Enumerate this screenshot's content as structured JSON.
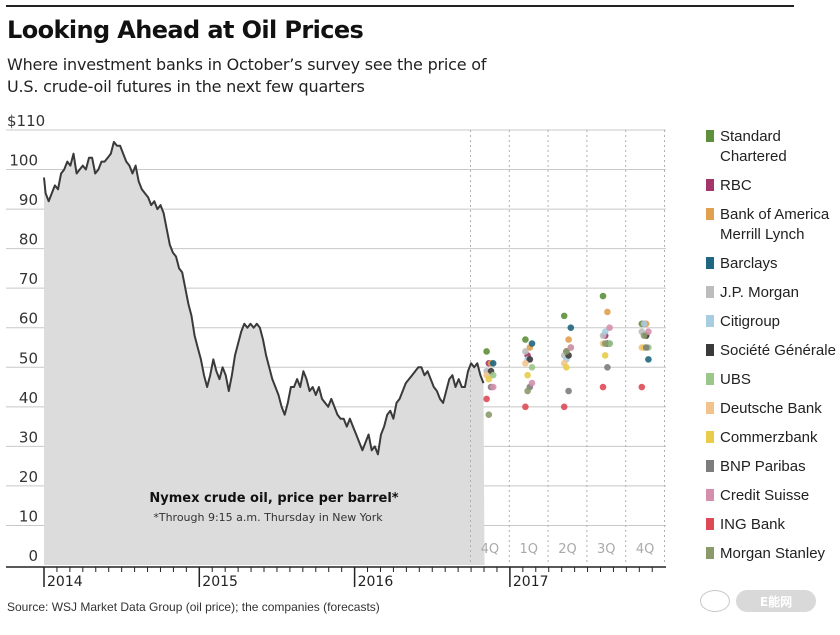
{
  "header": {
    "title": "Looking Ahead at Oil Prices",
    "subtitle": "Where investment banks in October’s survey see the price of U.S. crude-oil futures in the next few quarters"
  },
  "footer": {
    "source": "Source: WSJ Market Data Group (oil price); the companies (forecasts)",
    "watermark": "E能网"
  },
  "chart_data": {
    "type": "line",
    "title": "Nymex crude oil, price per barrel*",
    "annotation": "*Through 9:15 a.m. Thursday in New York",
    "ylabel": "",
    "ylim": [
      0,
      110
    ],
    "y_ticks": [
      {
        "value": 110,
        "label": "$110"
      },
      {
        "value": 100,
        "label": "100"
      },
      {
        "value": 90,
        "label": "90"
      },
      {
        "value": 80,
        "label": "80"
      },
      {
        "value": 70,
        "label": "70"
      },
      {
        "value": 60,
        "label": "60"
      },
      {
        "value": 50,
        "label": "50"
      },
      {
        "value": 40,
        "label": "40"
      },
      {
        "value": 30,
        "label": "30"
      },
      {
        "value": 20,
        "label": "20"
      },
      {
        "value": 10,
        "label": "10"
      },
      {
        "value": 0,
        "label": "0"
      }
    ],
    "x_year_labels": [
      "2014",
      "2015",
      "2016",
      "2017"
    ],
    "xlim_years": [
      2014.0,
      2018.0
    ],
    "grid": true,
    "price_series": {
      "name": "Nymex crude oil",
      "points": [
        [
          2014.0,
          98
        ],
        [
          2014.01,
          94
        ],
        [
          2014.03,
          92
        ],
        [
          2014.05,
          94
        ],
        [
          2014.07,
          96
        ],
        [
          2014.09,
          95
        ],
        [
          2014.11,
          99
        ],
        [
          2014.13,
          100
        ],
        [
          2014.15,
          102
        ],
        [
          2014.17,
          101
        ],
        [
          2014.19,
          104
        ],
        [
          2014.21,
          99
        ],
        [
          2014.23,
          100
        ],
        [
          2014.25,
          101
        ],
        [
          2014.27,
          100
        ],
        [
          2014.29,
          103
        ],
        [
          2014.31,
          103
        ],
        [
          2014.33,
          99
        ],
        [
          2014.35,
          100
        ],
        [
          2014.37,
          102
        ],
        [
          2014.39,
          102
        ],
        [
          2014.41,
          103
        ],
        [
          2014.43,
          104
        ],
        [
          2014.45,
          107
        ],
        [
          2014.47,
          106
        ],
        [
          2014.49,
          106
        ],
        [
          2014.51,
          104
        ],
        [
          2014.53,
          102
        ],
        [
          2014.55,
          101
        ],
        [
          2014.57,
          99
        ],
        [
          2014.59,
          101
        ],
        [
          2014.61,
          97
        ],
        [
          2014.63,
          95
        ],
        [
          2014.65,
          94
        ],
        [
          2014.67,
          93
        ],
        [
          2014.69,
          91
        ],
        [
          2014.71,
          92
        ],
        [
          2014.73,
          90
        ],
        [
          2014.75,
          91
        ],
        [
          2014.77,
          89
        ],
        [
          2014.79,
          85
        ],
        [
          2014.81,
          81
        ],
        [
          2014.83,
          79
        ],
        [
          2014.85,
          78
        ],
        [
          2014.87,
          75
        ],
        [
          2014.89,
          74
        ],
        [
          2014.91,
          70
        ],
        [
          2014.93,
          66
        ],
        [
          2014.95,
          63
        ],
        [
          2014.97,
          58
        ],
        [
          2014.99,
          55
        ],
        [
          2015.01,
          52
        ],
        [
          2015.03,
          48
        ],
        [
          2015.05,
          45
        ],
        [
          2015.07,
          48
        ],
        [
          2015.09,
          52
        ],
        [
          2015.11,
          49
        ],
        [
          2015.13,
          47
        ],
        [
          2015.15,
          50
        ],
        [
          2015.17,
          48
        ],
        [
          2015.19,
          44
        ],
        [
          2015.21,
          48
        ],
        [
          2015.23,
          53
        ],
        [
          2015.25,
          56
        ],
        [
          2015.27,
          59
        ],
        [
          2015.29,
          61
        ],
        [
          2015.31,
          60
        ],
        [
          2015.33,
          61
        ],
        [
          2015.35,
          60
        ],
        [
          2015.37,
          61
        ],
        [
          2015.39,
          60
        ],
        [
          2015.41,
          57
        ],
        [
          2015.43,
          53
        ],
        [
          2015.45,
          50
        ],
        [
          2015.47,
          47
        ],
        [
          2015.49,
          45
        ],
        [
          2015.51,
          43
        ],
        [
          2015.53,
          40
        ],
        [
          2015.55,
          38
        ],
        [
          2015.57,
          41
        ],
        [
          2015.59,
          45
        ],
        [
          2015.61,
          45
        ],
        [
          2015.63,
          47
        ],
        [
          2015.65,
          45
        ],
        [
          2015.67,
          49
        ],
        [
          2015.69,
          47
        ],
        [
          2015.71,
          44
        ],
        [
          2015.73,
          45
        ],
        [
          2015.75,
          43
        ],
        [
          2015.77,
          45
        ],
        [
          2015.79,
          42
        ],
        [
          2015.81,
          41
        ],
        [
          2015.83,
          40
        ],
        [
          2015.85,
          42
        ],
        [
          2015.87,
          40
        ],
        [
          2015.89,
          38
        ],
        [
          2015.91,
          37
        ],
        [
          2015.93,
          37
        ],
        [
          2015.95,
          35
        ],
        [
          2015.97,
          37
        ],
        [
          2015.99,
          35
        ],
        [
          2016.01,
          33
        ],
        [
          2016.03,
          31
        ],
        [
          2016.05,
          29
        ],
        [
          2016.07,
          31
        ],
        [
          2016.09,
          33
        ],
        [
          2016.11,
          29
        ],
        [
          2016.13,
          30
        ],
        [
          2016.15,
          28
        ],
        [
          2016.17,
          33
        ],
        [
          2016.19,
          35
        ],
        [
          2016.21,
          38
        ],
        [
          2016.23,
          39
        ],
        [
          2016.25,
          37
        ],
        [
          2016.27,
          41
        ],
        [
          2016.29,
          42
        ],
        [
          2016.31,
          44
        ],
        [
          2016.33,
          46
        ],
        [
          2016.35,
          47
        ],
        [
          2016.37,
          48
        ],
        [
          2016.39,
          49
        ],
        [
          2016.41,
          50
        ],
        [
          2016.43,
          50
        ],
        [
          2016.45,
          48
        ],
        [
          2016.47,
          49
        ],
        [
          2016.49,
          47
        ],
        [
          2016.51,
          45
        ],
        [
          2016.53,
          44
        ],
        [
          2016.55,
          42
        ],
        [
          2016.57,
          41
        ],
        [
          2016.59,
          44
        ],
        [
          2016.61,
          47
        ],
        [
          2016.63,
          48
        ],
        [
          2016.65,
          45
        ],
        [
          2016.67,
          47
        ],
        [
          2016.69,
          45
        ],
        [
          2016.71,
          45
        ],
        [
          2016.73,
          49
        ],
        [
          2016.75,
          51
        ],
        [
          2016.77,
          50
        ],
        [
          2016.79,
          51
        ],
        [
          2016.81,
          48
        ],
        [
          2016.83,
          46
        ]
      ]
    },
    "forecast_quarters": [
      "4Q",
      "1Q",
      "2Q",
      "3Q",
      "4Q"
    ],
    "forecast_quarter_years": [
      2016,
      2017,
      2017,
      2017,
      2017
    ],
    "series": [
      {
        "name": "Standard Chartered",
        "color": "#5e8f3a",
        "values": [
          54,
          57,
          63,
          68,
          61
        ]
      },
      {
        "name": "RBC",
        "color": "#a3356a",
        "values": [
          51,
          53,
          54,
          58,
          61
        ]
      },
      {
        "name": "Bank of America Merrill Lynch",
        "color": "#e0a050",
        "values": [
          51,
          55,
          57,
          64,
          61
        ]
      },
      {
        "name": "Barclays",
        "color": "#1f6680",
        "values": [
          51,
          56,
          60,
          56,
          52
        ]
      },
      {
        "name": "J.P. Morgan",
        "color": "#bdbdbd",
        "values": [
          49,
          54,
          53,
          58,
          59
        ]
      },
      {
        "name": "Citigroup",
        "color": "#a8cde0",
        "values": [
          48,
          52,
          52,
          59,
          61
        ]
      },
      {
        "name": "Société Générale",
        "color": "#3a3a3a",
        "values": [
          49,
          52,
          53,
          56,
          58
        ]
      },
      {
        "name": "UBS",
        "color": "#9cc78a",
        "values": [
          48,
          50,
          55,
          56,
          55
        ]
      },
      {
        "name": "Deutsche Bank",
        "color": "#f2c48d",
        "values": [
          48,
          51,
          51,
          56,
          55
        ]
      },
      {
        "name": "Commerzbank",
        "color": "#e8cc4a",
        "values": [
          47,
          48,
          50,
          53,
          55
        ]
      },
      {
        "name": "BNP Paribas",
        "color": "#7d7d7d",
        "values": [
          45,
          45,
          44,
          50,
          55
        ]
      },
      {
        "name": "Credit Suisse",
        "color": "#d48fac",
        "values": [
          45,
          46,
          55,
          60,
          59
        ]
      },
      {
        "name": "ING Bank",
        "color": "#dd4a55",
        "values": [
          42,
          40,
          40,
          45,
          45
        ]
      },
      {
        "name": "Morgan Stanley",
        "color": "#8a9a6a",
        "values": [
          38,
          44,
          54,
          56,
          58
        ]
      }
    ],
    "legend_position": "right"
  }
}
